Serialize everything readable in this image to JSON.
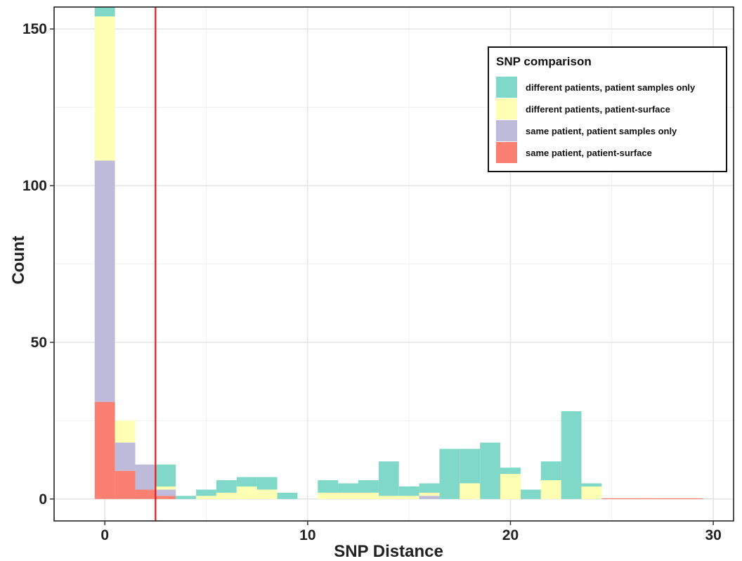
{
  "chart_data": {
    "type": "bar",
    "subtype": "stacked-histogram",
    "xlabel": "SNP Distance",
    "ylabel": "Count",
    "xlim": [
      -2.5,
      31
    ],
    "ylim": [
      -7,
      157
    ],
    "x_ticks": [
      0,
      10,
      20,
      30
    ],
    "y_ticks": [
      0,
      50,
      100,
      150
    ],
    "grid": true,
    "bin_width": 1,
    "vline": {
      "x": 2.5,
      "color": "#e41a1c"
    },
    "legend": {
      "title": "SNP comparison",
      "position": "top-right"
    },
    "x": [
      0,
      1,
      2,
      3,
      4,
      5,
      6,
      7,
      8,
      9,
      10,
      11,
      12,
      13,
      14,
      15,
      16,
      17,
      18,
      19,
      20,
      21,
      22,
      23,
      24,
      25,
      26,
      27,
      28,
      29
    ],
    "series": [
      {
        "name": "same patient, patient-surface",
        "color": "#fb8072",
        "values": [
          31,
          9,
          3,
          1,
          0,
          0,
          0,
          0,
          0,
          0,
          0,
          0,
          0,
          0,
          0,
          0,
          0,
          0,
          0,
          0,
          0,
          0,
          0,
          0,
          0,
          0,
          0,
          0,
          0,
          0
        ]
      },
      {
        "name": "same patient, patient samples only",
        "color": "#bebada",
        "values": [
          77,
          9,
          8,
          2,
          0,
          0,
          0,
          0,
          0,
          0,
          0,
          0,
          0,
          0,
          0,
          0,
          1,
          0,
          0,
          0,
          0,
          0,
          0,
          0,
          0,
          0,
          0,
          0,
          0,
          0
        ]
      },
      {
        "name": "different patients, patient-surface",
        "color": "#ffffb3",
        "values": [
          46,
          7,
          0,
          1,
          0,
          1,
          2,
          4,
          3,
          0,
          0,
          2,
          2,
          2,
          1,
          1,
          1,
          0,
          5,
          0,
          8,
          0,
          6,
          0,
          4,
          0,
          0,
          0,
          0,
          0
        ]
      },
      {
        "name": "different patients, patient samples only",
        "color": "#80d9c8",
        "values": [
          3,
          0,
          0,
          7,
          1,
          2,
          4,
          3,
          4,
          2,
          0,
          4,
          3,
          4,
          11,
          3,
          3,
          16,
          11,
          18,
          2,
          3,
          6,
          28,
          1,
          0,
          0,
          0,
          0,
          0
        ]
      }
    ],
    "legend_order": [
      "different patients, patient samples only",
      "different patients, patient-surface",
      "same patient, patient samples only",
      "same patient, patient-surface"
    ]
  }
}
